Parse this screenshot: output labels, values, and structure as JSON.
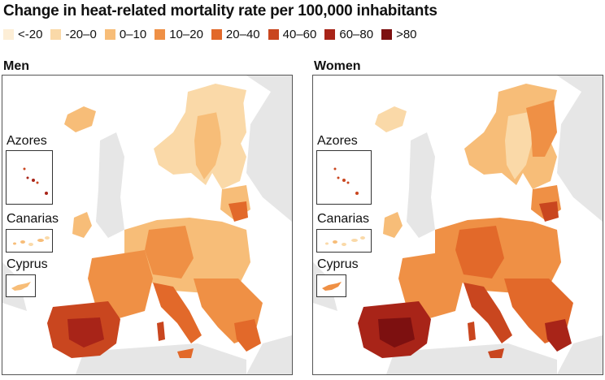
{
  "title": "Change in heat-related mortality rate per 100,000 inhabitants",
  "legend": {
    "items": [
      {
        "label": "<-20",
        "color": "#fdeed6"
      },
      {
        "label": "-20–0",
        "color": "#fad9a8"
      },
      {
        "label": "0–10",
        "color": "#f7bd78"
      },
      {
        "label": "10–20",
        "color": "#ef9045"
      },
      {
        "label": "20–40",
        "color": "#e2692a"
      },
      {
        "label": "40–60",
        "color": "#c9461f"
      },
      {
        "label": "60–80",
        "color": "#a82418"
      },
      {
        "label": ">80",
        "color": "#7d1010"
      }
    ]
  },
  "panels": [
    {
      "label": "Men",
      "insets": {
        "azores": "Azores",
        "canarias": "Canarias",
        "cyprus": "Cyprus"
      }
    },
    {
      "label": "Women",
      "insets": {
        "azores": "Azores",
        "canarias": "Canarias",
        "cyprus": "Cyprus"
      }
    }
  ]
}
